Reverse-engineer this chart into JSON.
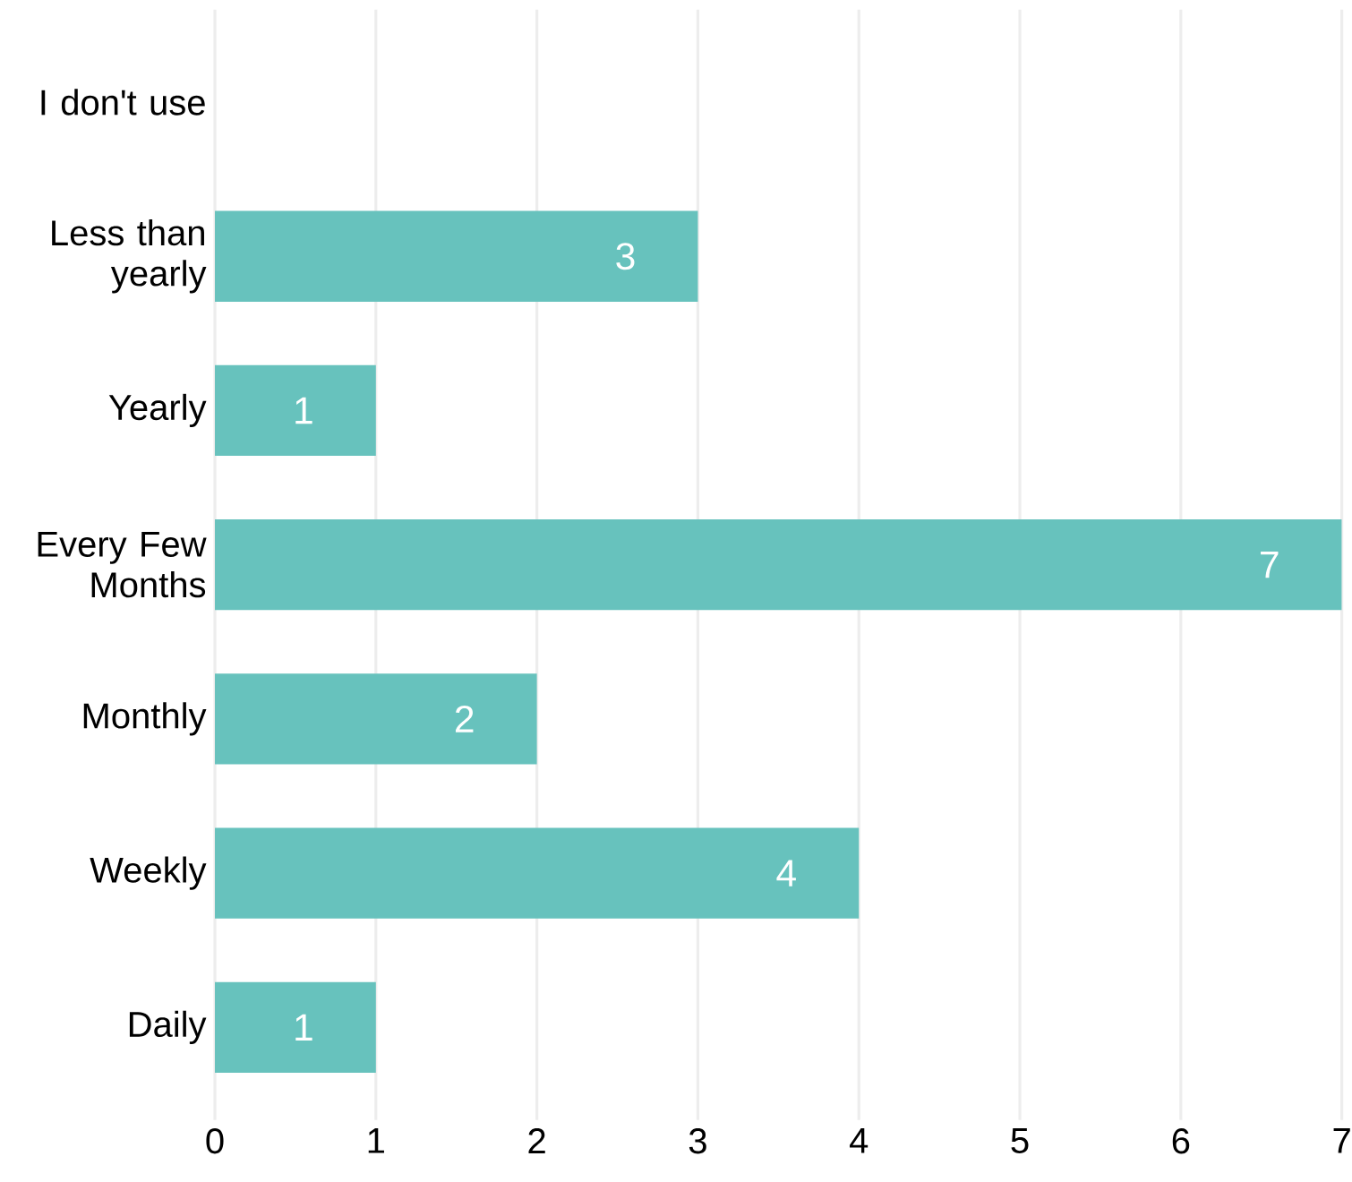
{
  "chart_data": {
    "type": "bar",
    "orientation": "horizontal",
    "categories": [
      "I don't use",
      "Less than yearly",
      "Yearly",
      "Every Few Months",
      "Monthly",
      "Weekly",
      "Daily"
    ],
    "values": [
      0,
      3,
      1,
      7,
      2,
      4,
      1
    ],
    "value_labels": [
      null,
      "3",
      "1",
      "7",
      "2",
      "4",
      "1"
    ],
    "color": "#67c2bd",
    "xlim": [
      0,
      7
    ],
    "xticks": [
      0,
      1,
      2,
      3,
      4,
      5,
      6,
      7
    ],
    "grid": "x"
  }
}
